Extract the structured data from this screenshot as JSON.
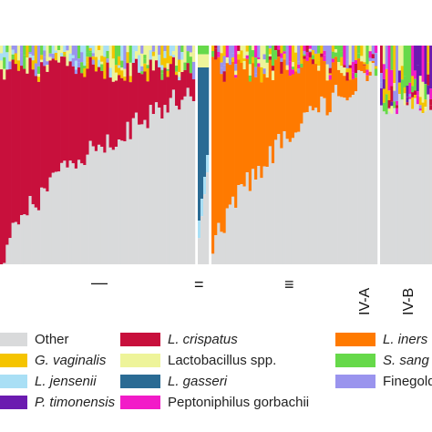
{
  "chart_data": {
    "type": "bar",
    "stacked": true,
    "normalized": true,
    "ylim": [
      0,
      1
    ],
    "groups": [
      {
        "label": "I",
        "n_samples": 68,
        "dominant": "L. crispatus"
      },
      {
        "label": "II",
        "n_samples": 4,
        "dominant": "L. gasseri"
      },
      {
        "label": "III",
        "n_samples": 58,
        "dominant": "L. iners"
      },
      {
        "label": "IV-A",
        "n_samples": 0,
        "dominant": ""
      },
      {
        "label": "IV-B",
        "n_samples": 20,
        "dominant": "G. vaginalis"
      }
    ],
    "group_labels": [
      "I",
      "II",
      "III",
      "IV-A",
      "IV-B"
    ],
    "group_label_glyphs": [
      "—",
      "=",
      "≡",
      "IV-A",
      "IV-B"
    ],
    "dominant_fraction_range": {
      "I": [
        0.92,
        0.1
      ],
      "III": [
        0.9,
        0.0
      ]
    },
    "legend": [
      {
        "name": "Other",
        "color": "#d9dadb",
        "italic": false
      },
      {
        "name": "G. vaginalis",
        "color": "#f5c400",
        "italic": true
      },
      {
        "name": "L. jensenii",
        "color": "#a9dff5",
        "italic": true
      },
      {
        "name": "P. timonensis",
        "color": "#6b1bb0",
        "italic": true
      },
      {
        "name": "L. crispatus",
        "color": "#c8103c",
        "italic": true
      },
      {
        "name": "Lactobacillus spp.",
        "color": "#eef49a",
        "italic": false
      },
      {
        "name": "L. gasseri",
        "color": "#2a6b94",
        "italic": true
      },
      {
        "name": "Peptoniphilus gorbachii",
        "color": "#f21bc8",
        "italic": false
      },
      {
        "name": "L. iners",
        "color": "#ff7a00",
        "italic": true
      },
      {
        "name": "S. sang",
        "color": "#66d94a",
        "italic": true
      },
      {
        "name": "Finegoldia",
        "color": "#9a94ee",
        "italic": false
      }
    ]
  }
}
